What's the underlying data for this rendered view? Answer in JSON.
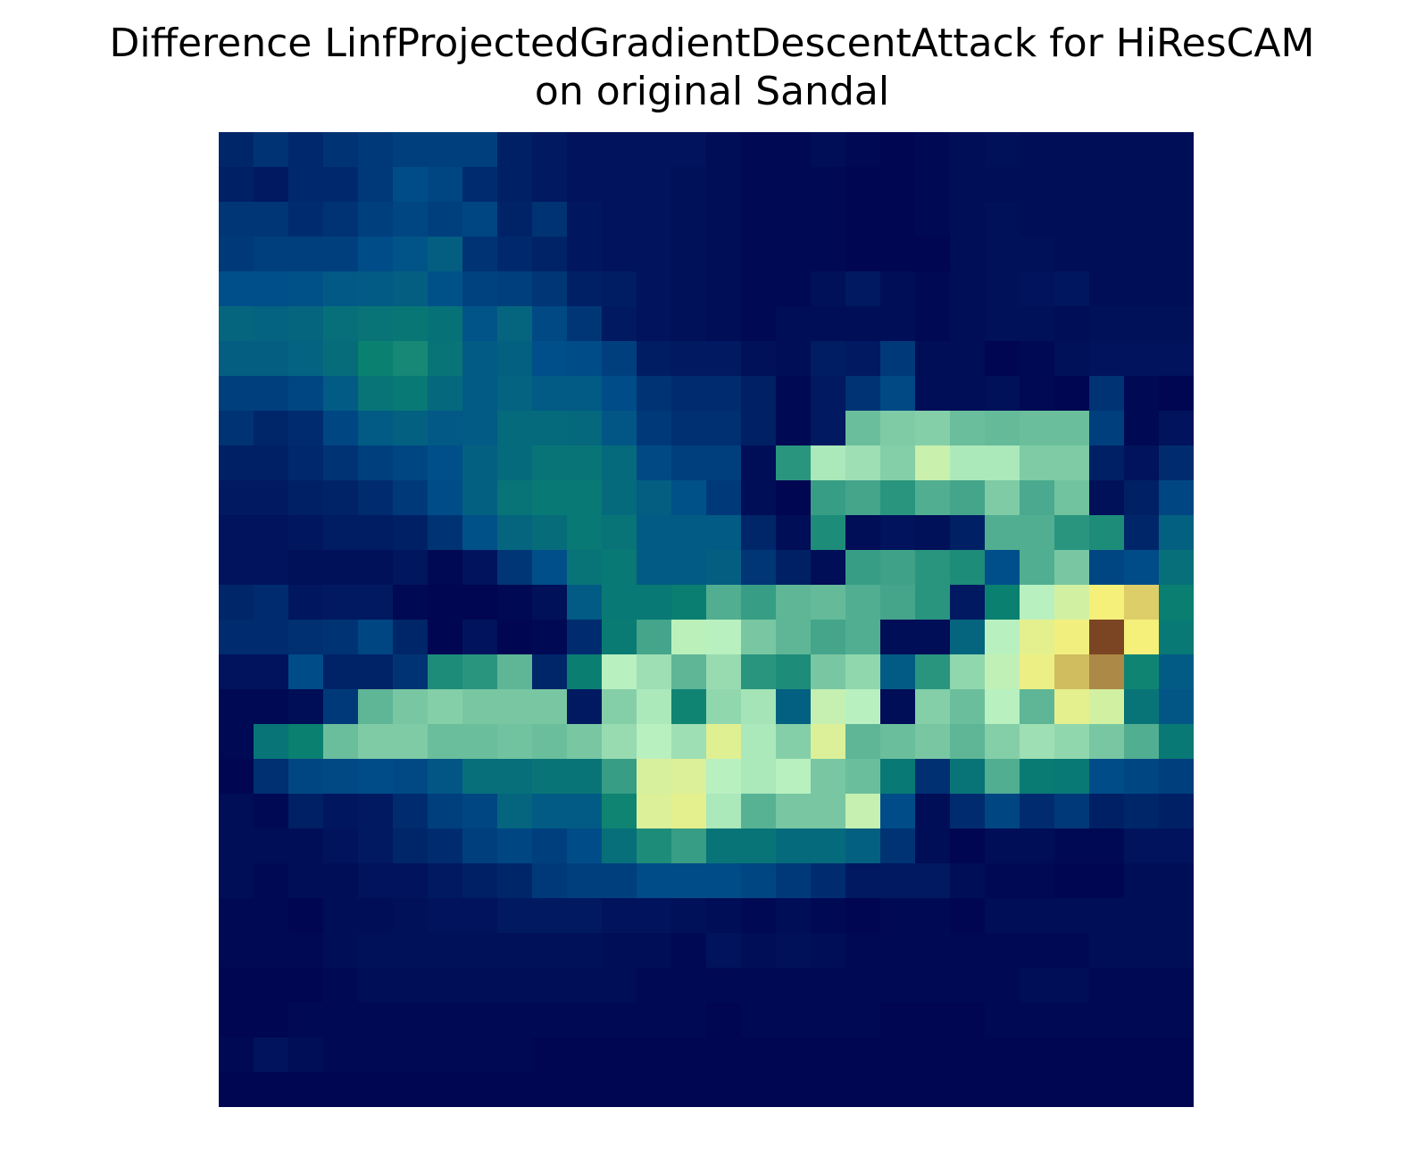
{
  "title_line1": "Difference LinfProjectedGradientDescentAttack for HiResCAM",
  "title_line2": "on original Sandal",
  "chart_data": {
    "type": "heatmap",
    "title": "Difference LinfProjectedGradientDescentAttack for HiResCAM on original Sandal",
    "rows": 28,
    "cols": 28,
    "axes_visible": false,
    "grid": false,
    "colors": {
      "low": "#00004d",
      "mid_low": "#004f8a",
      "mid": "#0a8070",
      "mid_high": "#b8f0c0",
      "high": "#f5f07a",
      "peak": "#4a0000"
    },
    "values": [
      [
        0.12,
        0.16,
        0.13,
        0.16,
        0.18,
        0.2,
        0.2,
        0.2,
        0.1,
        0.08,
        0.06,
        0.06,
        0.06,
        0.06,
        0.04,
        0.03,
        0.03,
        0.04,
        0.03,
        0.02,
        0.03,
        0.04,
        0.05,
        0.04,
        0.04,
        0.04,
        0.04,
        0.04
      ],
      [
        0.1,
        0.08,
        0.13,
        0.13,
        0.18,
        0.24,
        0.22,
        0.14,
        0.1,
        0.08,
        0.06,
        0.06,
        0.06,
        0.05,
        0.04,
        0.03,
        0.03,
        0.03,
        0.02,
        0.02,
        0.03,
        0.04,
        0.04,
        0.04,
        0.04,
        0.04,
        0.04,
        0.04
      ],
      [
        0.17,
        0.17,
        0.14,
        0.16,
        0.2,
        0.22,
        0.2,
        0.22,
        0.11,
        0.16,
        0.07,
        0.06,
        0.06,
        0.05,
        0.04,
        0.03,
        0.03,
        0.03,
        0.02,
        0.02,
        0.03,
        0.04,
        0.05,
        0.04,
        0.04,
        0.04,
        0.04,
        0.04
      ],
      [
        0.18,
        0.2,
        0.2,
        0.2,
        0.24,
        0.27,
        0.31,
        0.16,
        0.13,
        0.11,
        0.07,
        0.06,
        0.06,
        0.05,
        0.04,
        0.03,
        0.03,
        0.03,
        0.02,
        0.02,
        0.02,
        0.04,
        0.05,
        0.05,
        0.04,
        0.04,
        0.04,
        0.04
      ],
      [
        0.25,
        0.25,
        0.26,
        0.29,
        0.3,
        0.31,
        0.26,
        0.21,
        0.2,
        0.17,
        0.1,
        0.09,
        0.06,
        0.05,
        0.04,
        0.03,
        0.03,
        0.05,
        0.08,
        0.04,
        0.03,
        0.04,
        0.05,
        0.06,
        0.07,
        0.04,
        0.04,
        0.04
      ],
      [
        0.34,
        0.33,
        0.34,
        0.38,
        0.4,
        0.41,
        0.39,
        0.27,
        0.34,
        0.23,
        0.17,
        0.08,
        0.06,
        0.05,
        0.04,
        0.03,
        0.04,
        0.04,
        0.04,
        0.04,
        0.03,
        0.04,
        0.05,
        0.05,
        0.04,
        0.05,
        0.05,
        0.05
      ],
      [
        0.31,
        0.31,
        0.33,
        0.37,
        0.45,
        0.47,
        0.4,
        0.3,
        0.32,
        0.25,
        0.24,
        0.2,
        0.09,
        0.08,
        0.08,
        0.05,
        0.04,
        0.09,
        0.08,
        0.18,
        0.04,
        0.04,
        0.02,
        0.03,
        0.05,
        0.06,
        0.06,
        0.06
      ],
      [
        0.2,
        0.2,
        0.22,
        0.3,
        0.4,
        0.42,
        0.35,
        0.3,
        0.33,
        0.3,
        0.3,
        0.24,
        0.16,
        0.14,
        0.14,
        0.1,
        0.03,
        0.08,
        0.16,
        0.23,
        0.04,
        0.04,
        0.05,
        0.03,
        0.02,
        0.16,
        0.03,
        0.02
      ],
      [
        0.16,
        0.12,
        0.14,
        0.22,
        0.3,
        0.32,
        0.29,
        0.3,
        0.36,
        0.36,
        0.35,
        0.28,
        0.18,
        0.15,
        0.15,
        0.1,
        0.03,
        0.08,
        0.6,
        0.63,
        0.64,
        0.6,
        0.59,
        0.6,
        0.6,
        0.2,
        0.03,
        0.06
      ],
      [
        0.1,
        0.1,
        0.13,
        0.16,
        0.2,
        0.22,
        0.25,
        0.32,
        0.36,
        0.4,
        0.4,
        0.36,
        0.23,
        0.2,
        0.2,
        0.04,
        0.5,
        0.7,
        0.68,
        0.64,
        0.76,
        0.7,
        0.7,
        0.63,
        0.63,
        0.1,
        0.06,
        0.14
      ],
      [
        0.08,
        0.08,
        0.1,
        0.11,
        0.14,
        0.18,
        0.24,
        0.32,
        0.4,
        0.42,
        0.42,
        0.36,
        0.31,
        0.26,
        0.18,
        0.04,
        0.02,
        0.52,
        0.54,
        0.5,
        0.56,
        0.54,
        0.63,
        0.55,
        0.61,
        0.05,
        0.1,
        0.22
      ],
      [
        0.06,
        0.06,
        0.07,
        0.09,
        0.09,
        0.1,
        0.16,
        0.26,
        0.34,
        0.37,
        0.42,
        0.4,
        0.3,
        0.3,
        0.3,
        0.12,
        0.04,
        0.48,
        0.04,
        0.06,
        0.05,
        0.1,
        0.56,
        0.56,
        0.5,
        0.48,
        0.12,
        0.32
      ],
      [
        0.06,
        0.06,
        0.05,
        0.05,
        0.05,
        0.07,
        0.03,
        0.06,
        0.17,
        0.25,
        0.4,
        0.42,
        0.3,
        0.3,
        0.31,
        0.17,
        0.1,
        0.04,
        0.52,
        0.53,
        0.5,
        0.48,
        0.25,
        0.56,
        0.62,
        0.22,
        0.24,
        0.38
      ],
      [
        0.12,
        0.14,
        0.07,
        0.08,
        0.08,
        0.03,
        0.02,
        0.02,
        0.03,
        0.05,
        0.3,
        0.42,
        0.42,
        0.44,
        0.56,
        0.52,
        0.58,
        0.59,
        0.56,
        0.54,
        0.5,
        0.08,
        0.45,
        0.72,
        0.78,
        0.86,
        0.88,
        0.44
      ],
      [
        0.14,
        0.14,
        0.15,
        0.16,
        0.22,
        0.12,
        0.02,
        0.06,
        0.02,
        0.03,
        0.14,
        0.43,
        0.54,
        0.73,
        0.72,
        0.62,
        0.58,
        0.54,
        0.56,
        0.04,
        0.04,
        0.34,
        0.72,
        0.82,
        0.85,
        0.96,
        0.86,
        0.42
      ],
      [
        0.06,
        0.06,
        0.24,
        0.11,
        0.11,
        0.16,
        0.48,
        0.5,
        0.58,
        0.12,
        0.44,
        0.72,
        0.68,
        0.58,
        0.67,
        0.5,
        0.48,
        0.62,
        0.66,
        0.3,
        0.5,
        0.66,
        0.74,
        0.84,
        0.89,
        0.92,
        0.46,
        0.3
      ],
      [
        0.03,
        0.03,
        0.04,
        0.18,
        0.58,
        0.62,
        0.64,
        0.62,
        0.62,
        0.62,
        0.08,
        0.64,
        0.7,
        0.46,
        0.66,
        0.69,
        0.32,
        0.75,
        0.72,
        0.04,
        0.64,
        0.6,
        0.72,
        0.58,
        0.82,
        0.78,
        0.4,
        0.28
      ],
      [
        0.03,
        0.4,
        0.45,
        0.6,
        0.63,
        0.63,
        0.6,
        0.6,
        0.61,
        0.6,
        0.62,
        0.67,
        0.72,
        0.68,
        0.81,
        0.7,
        0.64,
        0.8,
        0.58,
        0.6,
        0.62,
        0.58,
        0.64,
        0.68,
        0.66,
        0.62,
        0.56,
        0.42
      ],
      [
        0.02,
        0.15,
        0.22,
        0.23,
        0.24,
        0.23,
        0.28,
        0.38,
        0.38,
        0.4,
        0.4,
        0.52,
        0.79,
        0.8,
        0.72,
        0.7,
        0.72,
        0.62,
        0.6,
        0.42,
        0.15,
        0.4,
        0.56,
        0.43,
        0.42,
        0.24,
        0.22,
        0.2
      ],
      [
        0.04,
        0.03,
        0.1,
        0.07,
        0.08,
        0.14,
        0.2,
        0.22,
        0.34,
        0.3,
        0.3,
        0.46,
        0.8,
        0.82,
        0.7,
        0.57,
        0.62,
        0.62,
        0.75,
        0.24,
        0.04,
        0.14,
        0.22,
        0.14,
        0.18,
        0.1,
        0.12,
        0.1
      ],
      [
        0.04,
        0.04,
        0.04,
        0.06,
        0.08,
        0.12,
        0.14,
        0.2,
        0.22,
        0.2,
        0.24,
        0.38,
        0.48,
        0.52,
        0.4,
        0.4,
        0.36,
        0.36,
        0.32,
        0.16,
        0.04,
        0.02,
        0.04,
        0.04,
        0.03,
        0.03,
        0.06,
        0.06
      ],
      [
        0.04,
        0.03,
        0.04,
        0.04,
        0.06,
        0.06,
        0.08,
        0.1,
        0.12,
        0.18,
        0.2,
        0.2,
        0.24,
        0.24,
        0.24,
        0.22,
        0.18,
        0.14,
        0.08,
        0.08,
        0.08,
        0.04,
        0.03,
        0.03,
        0.02,
        0.02,
        0.04,
        0.04
      ],
      [
        0.03,
        0.03,
        0.02,
        0.04,
        0.04,
        0.05,
        0.06,
        0.06,
        0.08,
        0.08,
        0.08,
        0.06,
        0.06,
        0.05,
        0.04,
        0.03,
        0.04,
        0.03,
        0.02,
        0.03,
        0.03,
        0.02,
        0.04,
        0.04,
        0.04,
        0.04,
        0.04,
        0.04
      ],
      [
        0.03,
        0.03,
        0.03,
        0.04,
        0.05,
        0.05,
        0.05,
        0.05,
        0.05,
        0.05,
        0.05,
        0.04,
        0.04,
        0.03,
        0.06,
        0.04,
        0.05,
        0.04,
        0.03,
        0.03,
        0.03,
        0.03,
        0.03,
        0.03,
        0.03,
        0.04,
        0.04,
        0.04
      ],
      [
        0.02,
        0.02,
        0.02,
        0.03,
        0.04,
        0.04,
        0.04,
        0.04,
        0.04,
        0.04,
        0.04,
        0.04,
        0.03,
        0.03,
        0.03,
        0.03,
        0.03,
        0.03,
        0.03,
        0.03,
        0.03,
        0.03,
        0.03,
        0.04,
        0.04,
        0.03,
        0.03,
        0.03
      ],
      [
        0.02,
        0.02,
        0.03,
        0.03,
        0.03,
        0.03,
        0.03,
        0.03,
        0.03,
        0.03,
        0.03,
        0.03,
        0.03,
        0.03,
        0.02,
        0.03,
        0.03,
        0.03,
        0.03,
        0.02,
        0.02,
        0.02,
        0.03,
        0.03,
        0.03,
        0.03,
        0.03,
        0.03
      ],
      [
        0.03,
        0.06,
        0.04,
        0.03,
        0.03,
        0.03,
        0.03,
        0.03,
        0.03,
        0.02,
        0.02,
        0.02,
        0.02,
        0.02,
        0.02,
        0.02,
        0.02,
        0.02,
        0.02,
        0.02,
        0.02,
        0.02,
        0.02,
        0.02,
        0.02,
        0.02,
        0.02,
        0.02
      ],
      [
        0.02,
        0.02,
        0.02,
        0.02,
        0.02,
        0.02,
        0.02,
        0.02,
        0.02,
        0.02,
        0.02,
        0.02,
        0.02,
        0.02,
        0.02,
        0.02,
        0.02,
        0.02,
        0.02,
        0.02,
        0.02,
        0.02,
        0.02,
        0.02,
        0.02,
        0.02,
        0.02,
        0.02
      ]
    ]
  }
}
